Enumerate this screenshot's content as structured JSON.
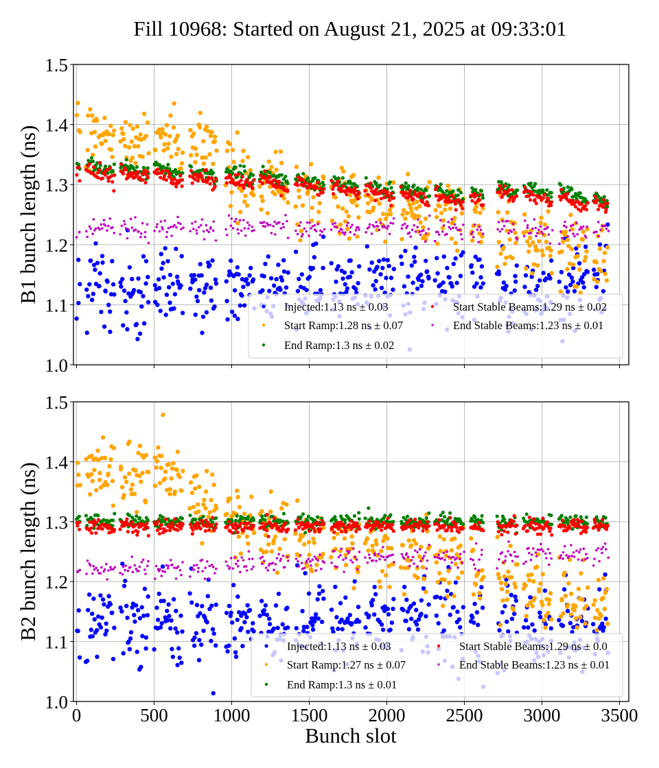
{
  "figure": {
    "title": "Fill 10968: Started on August 21, 2025 at 09:33:01"
  },
  "chart_data": [
    {
      "type": "scatter",
      "panel": "top",
      "title": "",
      "xlabel": "",
      "ylabel": "B1 bunch length (ns)",
      "xlim": [
        -20,
        3560
      ],
      "ylim": [
        1.0,
        1.5
      ],
      "xticks": [
        0,
        500,
        1000,
        1500,
        2000,
        2500,
        3000,
        3500
      ],
      "xtick_labels_visible": false,
      "yticks": [
        1.0,
        1.1,
        1.2,
        1.3,
        1.4,
        1.5
      ],
      "ytick_labels": [
        "1.0",
        "1.1",
        "1.2",
        "1.3",
        "1.4",
        "1.5"
      ],
      "grid": true,
      "legend_position": "lower-right",
      "legend_columns": 2,
      "series": [
        {
          "name": "Injected",
          "label": "Injected:1.13 ns ± 0.03",
          "color": "#0000ff",
          "mean": 1.13,
          "std": 0.03,
          "marker": "large",
          "trend": [
            [
              0,
              1.12
            ],
            [
              500,
              1.13
            ],
            [
              1000,
              1.14
            ],
            [
              1500,
              1.13
            ],
            [
              2000,
              1.13
            ],
            [
              2500,
              1.13
            ],
            [
              3000,
              1.13
            ],
            [
              3400,
              1.14
            ]
          ]
        },
        {
          "name": "Start Ramp",
          "label": "Start Ramp:1.28 ns ± 0.07",
          "color": "#ffa500",
          "mean": 1.28,
          "std": 0.07,
          "marker": "large",
          "trend": [
            [
              0,
              1.38
            ],
            [
              500,
              1.37
            ],
            [
              900,
              1.36
            ],
            [
              1100,
              1.3
            ],
            [
              1500,
              1.28
            ],
            [
              2000,
              1.26
            ],
            [
              2500,
              1.25
            ],
            [
              2750,
              1.21
            ],
            [
              3000,
              1.2
            ],
            [
              3400,
              1.18
            ]
          ]
        },
        {
          "name": "End Ramp",
          "label": "End Ramp:1.3 ns ± 0.02",
          "color": "#008000",
          "mean": 1.3,
          "std": 0.02,
          "marker": "medium",
          "trend": [
            [
              0,
              1.33
            ],
            [
              500,
              1.325
            ],
            [
              1000,
              1.318
            ],
            [
              1500,
              1.305
            ],
            [
              2000,
              1.295
            ],
            [
              2500,
              1.282
            ],
            [
              2750,
              1.295
            ],
            [
              3000,
              1.287
            ],
            [
              3400,
              1.275
            ]
          ]
        },
        {
          "name": "Start Stable Beams",
          "label": "Start Stable Beams:1.29 ns ± 0.02",
          "color": "#ff0000",
          "mean": 1.29,
          "std": 0.02,
          "marker": "medium",
          "trend": [
            [
              0,
              1.32
            ],
            [
              500,
              1.315
            ],
            [
              1000,
              1.308
            ],
            [
              1500,
              1.295
            ],
            [
              2000,
              1.285
            ],
            [
              2500,
              1.272
            ],
            [
              2750,
              1.285
            ],
            [
              3000,
              1.278
            ],
            [
              3400,
              1.265
            ]
          ]
        },
        {
          "name": "End Stable Beams",
          "label": "End Stable Beams:1.23 ns ± 0.01",
          "color": "#bf00bf",
          "mean": 1.23,
          "std": 0.01,
          "marker": "small",
          "trend": [
            [
              0,
              1.225
            ],
            [
              1000,
              1.227
            ],
            [
              2000,
              1.228
            ],
            [
              2500,
              1.226
            ],
            [
              3000,
              1.225
            ],
            [
              3400,
              1.224
            ]
          ]
        }
      ]
    },
    {
      "type": "scatter",
      "panel": "bottom",
      "title": "",
      "xlabel": "Bunch slot",
      "ylabel": "B2 bunch length (ns)",
      "xlim": [
        -20,
        3560
      ],
      "ylim": [
        1.0,
        1.5
      ],
      "xticks": [
        0,
        500,
        1000,
        1500,
        2000,
        2500,
        3000,
        3500
      ],
      "xtick_labels": [
        "0",
        "500",
        "1000",
        "1500",
        "2000",
        "2500",
        "3000",
        "3500"
      ],
      "yticks": [
        1.0,
        1.1,
        1.2,
        1.3,
        1.4,
        1.5
      ],
      "ytick_labels": [
        "1.0",
        "1.1",
        "1.2",
        "1.3",
        "1.4",
        "1.5"
      ],
      "grid": true,
      "legend_position": "lower-right",
      "legend_columns": 2,
      "series": [
        {
          "name": "Injected",
          "label": "Injected:1.13 ns ± 0.03",
          "color": "#0000ff",
          "mean": 1.13,
          "std": 0.03,
          "marker": "large",
          "trend": [
            [
              0,
              1.13
            ],
            [
              500,
              1.15
            ],
            [
              700,
              1.12
            ],
            [
              1000,
              1.14
            ],
            [
              1500,
              1.13
            ],
            [
              2000,
              1.14
            ],
            [
              2500,
              1.13
            ],
            [
              3000,
              1.13
            ],
            [
              3400,
              1.12
            ]
          ]
        },
        {
          "name": "Start Ramp",
          "label": "Start Ramp:1.27 ns ± 0.07",
          "color": "#ffa500",
          "mean": 1.27,
          "std": 0.07,
          "marker": "large",
          "trend": [
            [
              0,
              1.38
            ],
            [
              500,
              1.38
            ],
            [
              700,
              1.35
            ],
            [
              900,
              1.33
            ],
            [
              1100,
              1.29
            ],
            [
              1500,
              1.27
            ],
            [
              2000,
              1.25
            ],
            [
              2400,
              1.23
            ],
            [
              2750,
              1.2
            ],
            [
              3000,
              1.18
            ],
            [
              3400,
              1.16
            ]
          ]
        },
        {
          "name": "End Ramp",
          "label": "End Ramp:1.3 ns ± 0.01",
          "color": "#008000",
          "mean": 1.3,
          "std": 0.01,
          "marker": "medium",
          "trend": [
            [
              0,
              1.3
            ],
            [
              3400,
              1.3
            ]
          ]
        },
        {
          "name": "Start Stable Beams",
          "label": "Start Stable Beams:1.29 ns ± 0.0",
          "color": "#ff0000",
          "mean": 1.29,
          "std": 0.0,
          "marker": "medium",
          "trend": [
            [
              0,
              1.292
            ],
            [
              3400,
              1.292
            ]
          ]
        },
        {
          "name": "End Stable Beams",
          "label": "End Stable Beams:1.23 ns ± 0.01",
          "color": "#bf00bf",
          "mean": 1.23,
          "std": 0.01,
          "marker": "small",
          "trend": [
            [
              0,
              1.22
            ],
            [
              1000,
              1.225
            ],
            [
              1500,
              1.235
            ],
            [
              2000,
              1.24
            ],
            [
              2500,
              1.24
            ],
            [
              3000,
              1.245
            ],
            [
              3400,
              1.25
            ]
          ]
        }
      ]
    }
  ],
  "bunch_trains": [
    [
      0,
      20
    ],
    [
      60,
      240
    ],
    [
      280,
      460
    ],
    [
      500,
      680
    ],
    [
      730,
      900
    ],
    [
      960,
      1140
    ],
    [
      1180,
      1360
    ],
    [
      1410,
      1590
    ],
    [
      1640,
      1820
    ],
    [
      1860,
      2040
    ],
    [
      2090,
      2270
    ],
    [
      2310,
      2490
    ],
    [
      2540,
      2620
    ],
    [
      2710,
      2840
    ],
    [
      2880,
      3060
    ],
    [
      3110,
      3290
    ],
    [
      3330,
      3420
    ]
  ]
}
